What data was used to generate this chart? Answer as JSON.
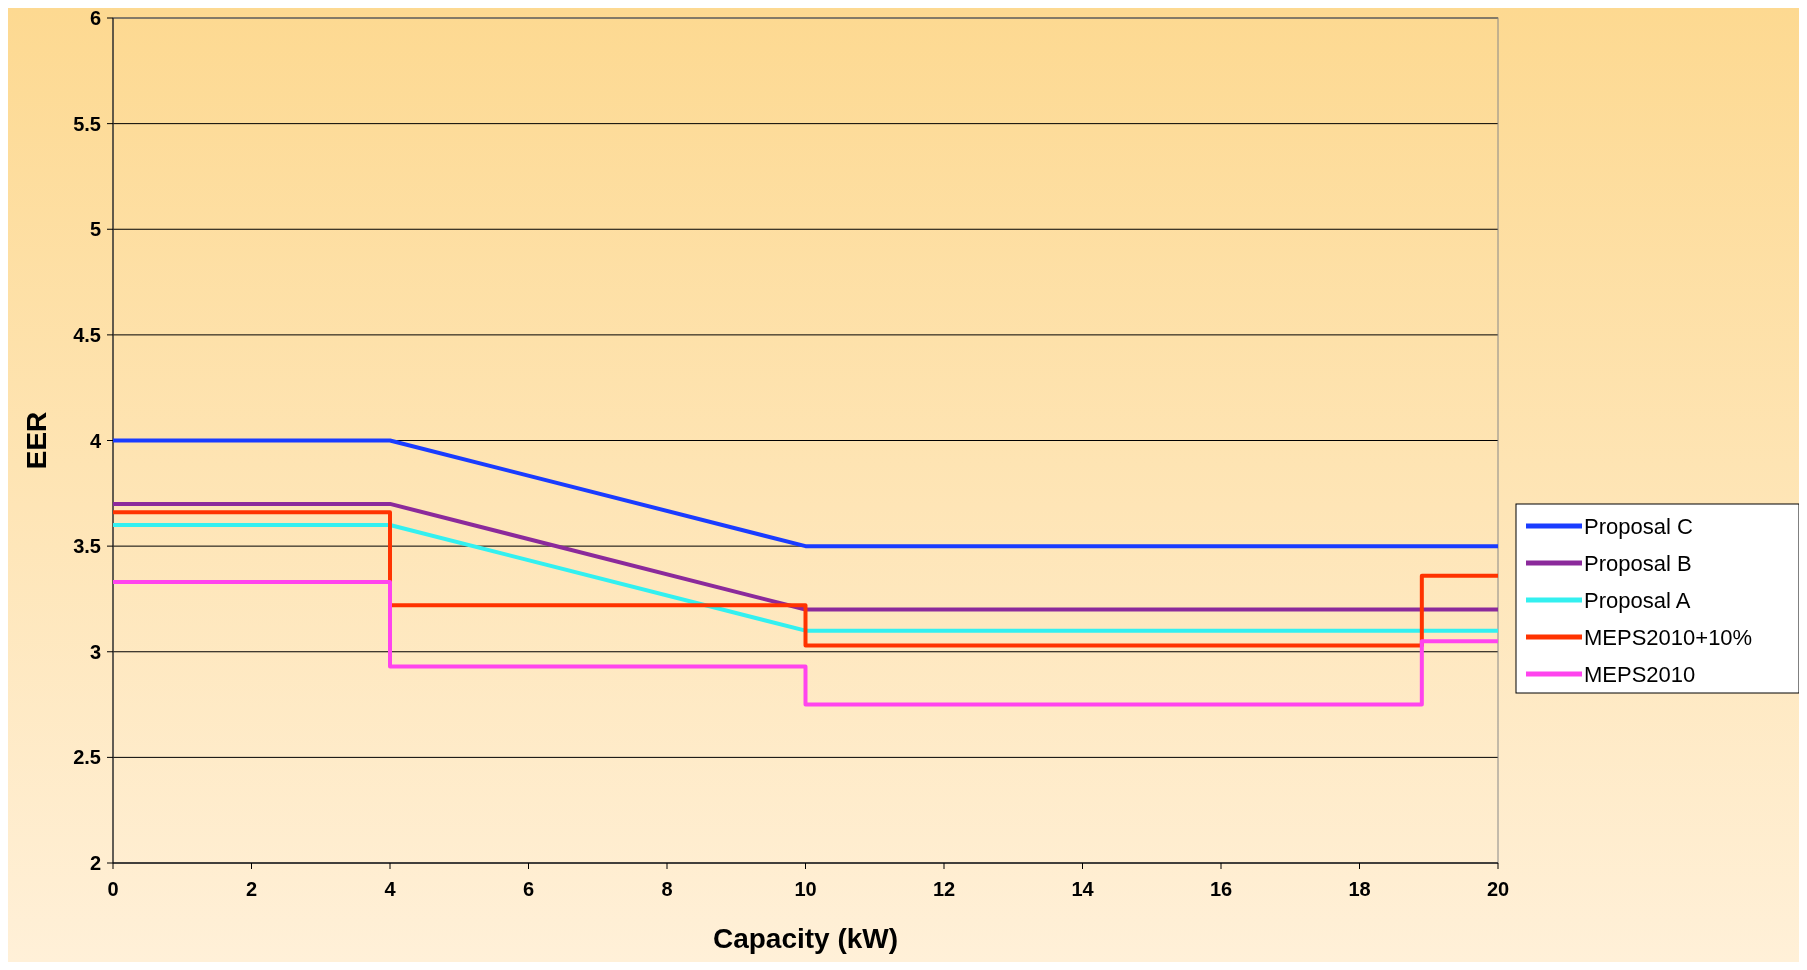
{
  "chart_data": {
    "type": "line",
    "xlabel": "Capacity (kW)",
    "ylabel": "EER",
    "xlim": [
      0,
      20
    ],
    "xticks": [
      0,
      2,
      4,
      6,
      8,
      10,
      12,
      14,
      16,
      18,
      20
    ],
    "ylim": [
      2,
      6
    ],
    "yticks": [
      2,
      2.5,
      3,
      3.5,
      4,
      4.5,
      5,
      5.5,
      6
    ],
    "grid": "y",
    "legend": "right",
    "marker": "none",
    "line_style": "solid",
    "series": [
      {
        "name": "Proposal C",
        "color": "#1a3cff",
        "x": [
          0,
          4,
          10,
          20
        ],
        "values": [
          4,
          4,
          3.5,
          3.5
        ]
      },
      {
        "name": "Proposal B",
        "color": "#8b2a9b",
        "x": [
          0,
          4,
          10,
          20
        ],
        "values": [
          3.7,
          3.7,
          3.2,
          3.2
        ]
      },
      {
        "name": "Proposal A",
        "color": "#33f0f0",
        "x": [
          0,
          4,
          10,
          20
        ],
        "values": [
          3.6,
          3.6,
          3.1,
          3.1
        ]
      },
      {
        "name": "MEPS2010+10%",
        "color": "#ff3300",
        "x": [
          0,
          4,
          4,
          10,
          10,
          18.9,
          18.9,
          20
        ],
        "values": [
          3.66,
          3.66,
          3.22,
          3.22,
          3.03,
          3.03,
          3.36,
          3.36
        ]
      },
      {
        "name": "MEPS2010",
        "color": "#ff44ee",
        "x": [
          0,
          4,
          4,
          10,
          10,
          18.9,
          18.9,
          20
        ],
        "values": [
          3.33,
          3.33,
          2.93,
          2.93,
          2.75,
          2.75,
          3.05,
          3.05
        ]
      }
    ]
  }
}
